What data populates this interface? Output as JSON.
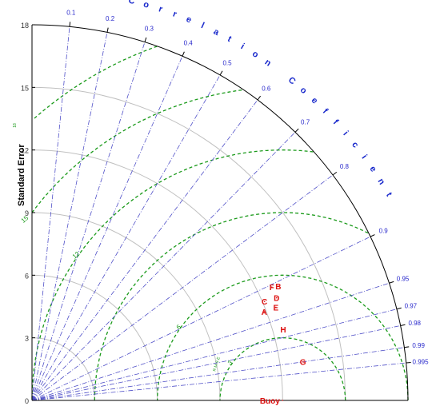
{
  "chart_data": {
    "type": "scatter",
    "subtype": "taylor-diagram",
    "ylabel": "Standard Error",
    "arc_label": "Correlation Coefficient",
    "std_ticks": [
      "0",
      "3",
      "6",
      "9",
      "12",
      "15",
      "18"
    ],
    "std_max": 18,
    "correlation_ticks": [
      0.1,
      0.2,
      0.3,
      0.4,
      0.5,
      0.6,
      0.7,
      0.8,
      0.9,
      0.95,
      0.97,
      0.98,
      0.99,
      0.995
    ],
    "correlation_tick_labels": [
      "0.1",
      "0.2",
      "0.3",
      "0.4",
      "0.5",
      "0.6",
      "0.7",
      "0.8",
      "0.9",
      "0.95",
      "0.97",
      "0.98",
      "0.99",
      "0.995"
    ],
    "rms": {
      "reference_std": 12,
      "contours": [
        3,
        6,
        9,
        12,
        15,
        18
      ],
      "contour_labels": [
        {
          "value": 3,
          "text": "3"
        },
        {
          "value": 6,
          "text": "6"
        },
        {
          "value": 12,
          "text": "12"
        },
        {
          "value": 15,
          "text": "15"
        }
      ],
      "rms_label": "R M S E",
      "small_label": "18"
    },
    "points": [
      {
        "label": "Buoy",
        "std": 12.0,
        "corr": 1.0
      },
      {
        "label": "G",
        "std": 13.1,
        "corr": 0.99
      },
      {
        "label": "H",
        "std": 12.5,
        "corr": 0.962
      },
      {
        "label": "A",
        "std": 11.9,
        "corr": 0.934
      },
      {
        "label": "E",
        "std": 12.5,
        "corr": 0.934
      },
      {
        "label": "C",
        "std": 12.1,
        "corr": 0.92
      },
      {
        "label": "D",
        "std": 12.7,
        "corr": 0.922
      },
      {
        "label": "F",
        "std": 12.7,
        "corr": 0.904
      },
      {
        "label": "B",
        "std": 13.0,
        "corr": 0.907
      }
    ],
    "colors": {
      "grid_arcs": "#c0c0c0",
      "corr_lines": "#5050c8",
      "rms_contours": "#1a9a1a",
      "points": "#dd1111",
      "tick_labels": "#2a2acc",
      "axis": "#000000"
    }
  }
}
